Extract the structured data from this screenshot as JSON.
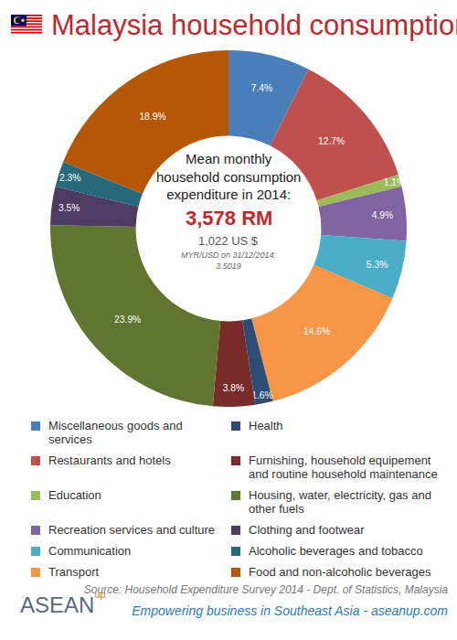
{
  "chart_data": {
    "type": "pie",
    "title": "Malaysia household consumption",
    "categories": [
      "Miscellaneous goods and services",
      "Restaurants and hotels",
      "Education",
      "Recreation services and culture",
      "Communication",
      "Transport",
      "Health",
      "Furnishing, household equipement and routine household maintenance",
      "Housing, water, electricity, gas and other fuels",
      "Clothing and footwear",
      "Alcoholic beverages and tobacco",
      "Food and non-alcoholic beverages"
    ],
    "values": [
      7.4,
      12.7,
      1.1,
      4.9,
      5.3,
      14.6,
      1.6,
      3.8,
      23.9,
      3.5,
      2.3,
      18.9
    ],
    "value_labels": [
      "7.4%",
      "12.7%",
      "1.1%",
      "4.9%",
      "5.3%",
      "14.6%",
      "1.6%",
      "3.8%",
      "23.9%",
      "3.5%",
      "2.3%",
      "18.9%"
    ],
    "colors": [
      "#4a7ebb",
      "#c0504d",
      "#9bbb59",
      "#8064a2",
      "#4bacc6",
      "#f79646",
      "#2c4d75",
      "#772c2a",
      "#5f7530",
      "#4d3b62",
      "#276a7c",
      "#b65708"
    ],
    "data_labels": true,
    "legend": "bottom",
    "annotations": {
      "heading": [
        "Mean monthly",
        "household consumption",
        "expenditure in 2014:"
      ],
      "amount": "3,578 RM",
      "converted": "1,022 US $",
      "rate": [
        "MYR/USD on 31/12/2014:",
        "3.5019"
      ]
    }
  },
  "footer": {
    "source": "Source: Household Expenditure Survey 2014 - Dept. of Statistics, Malaysia",
    "logo": "ASEAN",
    "logo_sup": "up",
    "tagline": "Empowering business in Southeast Asia - aseanup.com"
  }
}
